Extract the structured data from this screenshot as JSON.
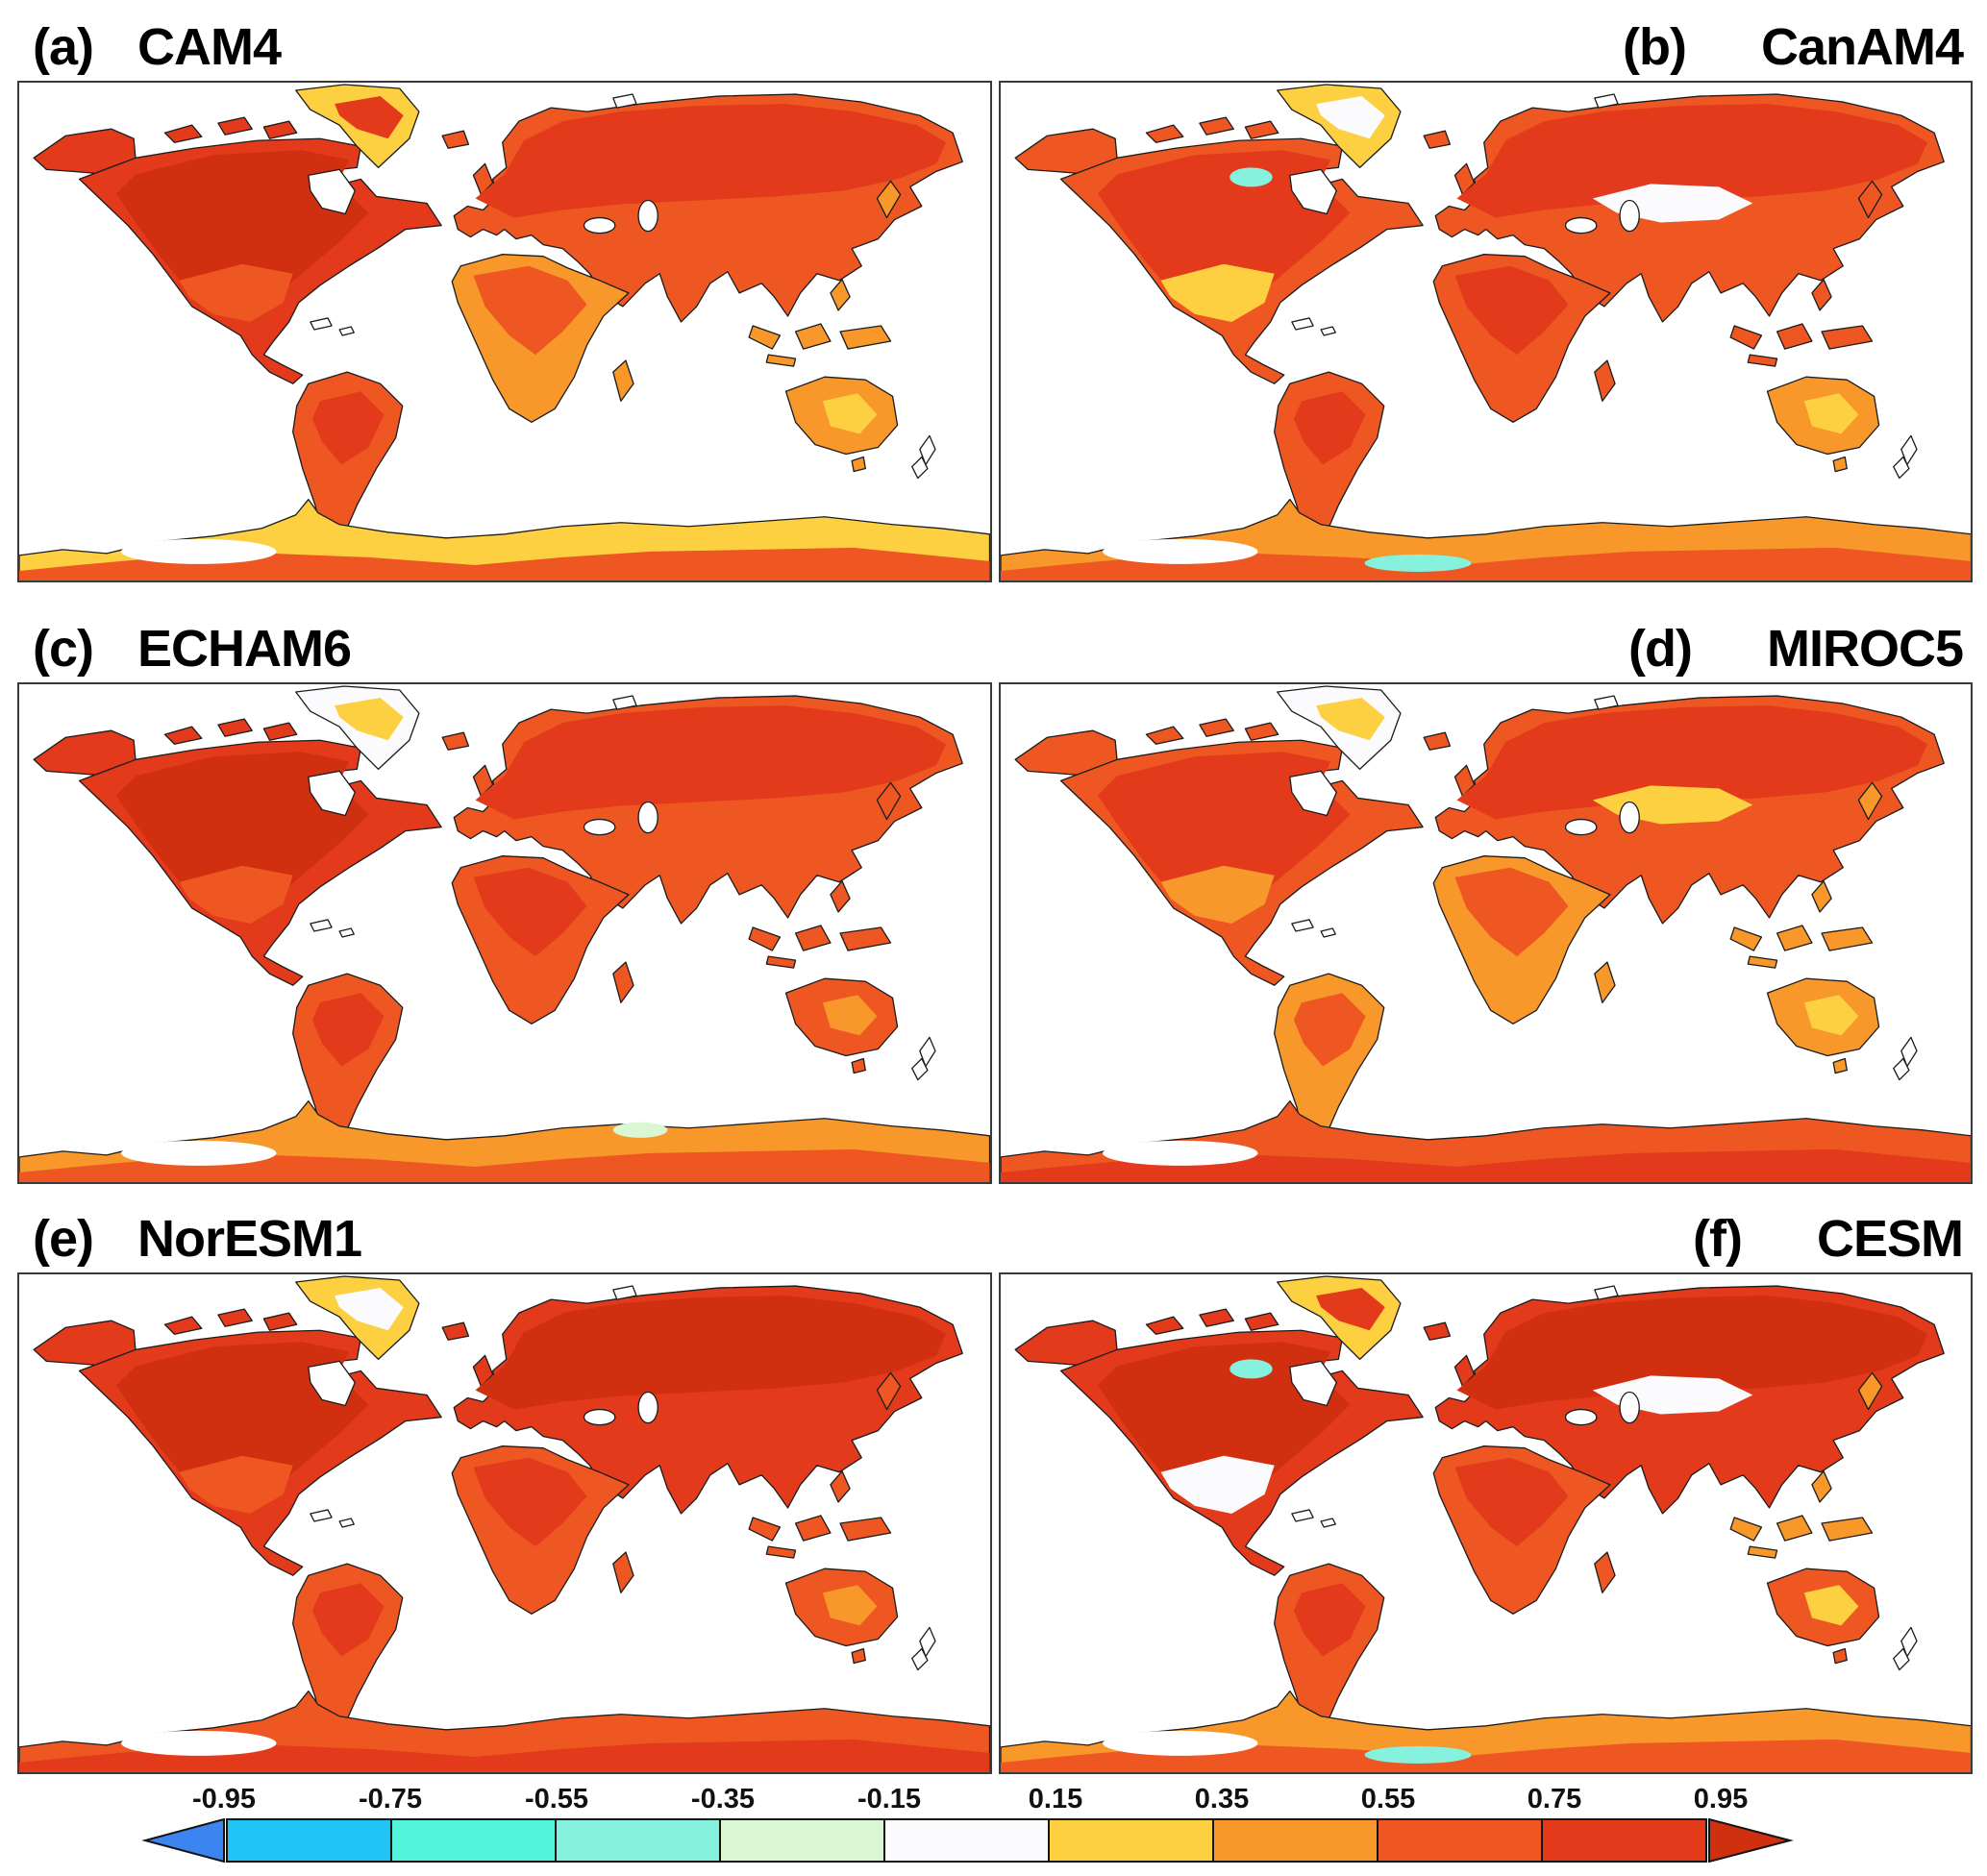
{
  "chart_data": {
    "type": "heatmap",
    "description": "Six-panel global map figure comparing six atmospheric model fields on land (white over ocean), all sharing one diverging color scale from -0.95 to 0.95.",
    "projection": "equirectangular",
    "colorbar": {
      "ticks": [
        "-0.95",
        "-0.75",
        "-0.55",
        "-0.35",
        "-0.15",
        "0.15",
        "0.35",
        "0.55",
        "0.75",
        "0.95"
      ],
      "value_bins": [
        -0.95,
        -0.75,
        -0.55,
        -0.35,
        -0.15,
        0.15,
        0.35,
        0.55,
        0.75,
        0.95
      ],
      "segment_colors": [
        "#1FC3F4",
        "#53F4DC",
        "#86F2DE",
        "#D9F7D2",
        "#FBFBFD",
        "#FDD041",
        "#F8982B",
        "#EE5722",
        "#E23A1B"
      ],
      "left_arrow_color": "#3C85F0",
      "right_arrow_color": "#D0300F",
      "border_color": "#141414",
      "legend_position": "bottom"
    },
    "panels": [
      {
        "label": "(a)",
        "model": "CAM4",
        "region_values": {
          "north_america": 0.85,
          "na_core": 1.0,
          "us_patch": 0.65,
          "greenland": 0.25,
          "greenland_core": 0.85,
          "south_america": 0.65,
          "sa_core": 0.85,
          "eurasia": 0.65,
          "eurasia_core": 0.85,
          "steppe_patch": null,
          "africa": 0.45,
          "africa_core": 0.65,
          "islands": 0.45,
          "australia": 0.45,
          "aus_core": 0.25,
          "antarctica": 0.25,
          "ant_core": 0.55,
          "spot_cyan_canada": null,
          "spot_cyan_ant": null,
          "spot_green_ant": null
        }
      },
      {
        "label": "(b)",
        "model": "CanAM4",
        "region_values": {
          "north_america": 0.65,
          "na_core": 0.85,
          "us_patch": 0.25,
          "greenland": 0.25,
          "greenland_core": 0.0,
          "south_america": 0.65,
          "sa_core": 0.85,
          "eurasia": 0.65,
          "eurasia_core": 0.85,
          "steppe_patch": 0.0,
          "africa": 0.65,
          "africa_core": 0.85,
          "islands": 0.55,
          "australia": 0.45,
          "aus_core": 0.25,
          "antarctica": 0.35,
          "ant_core": 0.65,
          "spot_cyan_canada": -0.45,
          "spot_cyan_ant": -0.45,
          "spot_green_ant": null
        }
      },
      {
        "label": "(c)",
        "model": "ECHAM6",
        "region_values": {
          "north_america": 0.85,
          "na_core": 1.0,
          "us_patch": 0.65,
          "greenland": 0.0,
          "greenland_core": 0.25,
          "south_america": 0.65,
          "sa_core": 0.85,
          "eurasia": 0.65,
          "eurasia_core": 0.85,
          "steppe_patch": null,
          "africa": 0.65,
          "africa_core": 0.85,
          "islands": 0.55,
          "australia": 0.55,
          "aus_core": 0.35,
          "antarctica": 0.45,
          "ant_core": 0.65,
          "spot_cyan_canada": null,
          "spot_cyan_ant": null,
          "spot_green_ant": -0.25
        }
      },
      {
        "label": "(d)",
        "model": "MIROC5",
        "region_values": {
          "north_america": 0.65,
          "na_core": 0.85,
          "us_patch": 0.35,
          "greenland": 0.0,
          "greenland_core": 0.25,
          "south_america": 0.45,
          "sa_core": 0.65,
          "eurasia": 0.65,
          "eurasia_core": 0.85,
          "steppe_patch": 0.25,
          "africa": 0.45,
          "africa_core": 0.65,
          "islands": 0.35,
          "australia": 0.35,
          "aus_core": 0.25,
          "antarctica": 0.55,
          "ant_core": 0.85,
          "spot_cyan_canada": null,
          "spot_cyan_ant": null,
          "spot_green_ant": null
        }
      },
      {
        "label": "(e)",
        "model": "NorESM1",
        "region_values": {
          "north_america": 0.85,
          "na_core": 1.0,
          "us_patch": 0.65,
          "greenland": 0.25,
          "greenland_core": 0.0,
          "south_america": 0.65,
          "sa_core": 0.85,
          "eurasia": 0.85,
          "eurasia_core": 1.0,
          "steppe_patch": null,
          "africa": 0.65,
          "africa_core": 0.85,
          "islands": 0.55,
          "australia": 0.55,
          "aus_core": 0.35,
          "antarctica": 0.55,
          "ant_core": 0.85,
          "spot_cyan_canada": null,
          "spot_cyan_ant": null,
          "spot_green_ant": null
        }
      },
      {
        "label": "(f)",
        "model": "CESM",
        "region_values": {
          "north_america": 0.85,
          "na_core": 1.0,
          "us_patch": 0.0,
          "greenland": 0.25,
          "greenland_core": 0.85,
          "south_america": 0.65,
          "sa_core": 0.85,
          "eurasia": 0.85,
          "eurasia_core": 1.0,
          "steppe_patch": 0.0,
          "africa": 0.65,
          "africa_core": 0.85,
          "islands": 0.45,
          "australia": 0.55,
          "aus_core": 0.25,
          "antarctica": 0.35,
          "ant_core": 0.65,
          "spot_cyan_canada": -0.45,
          "spot_cyan_ant": -0.45,
          "spot_green_ant": null
        }
      }
    ]
  }
}
